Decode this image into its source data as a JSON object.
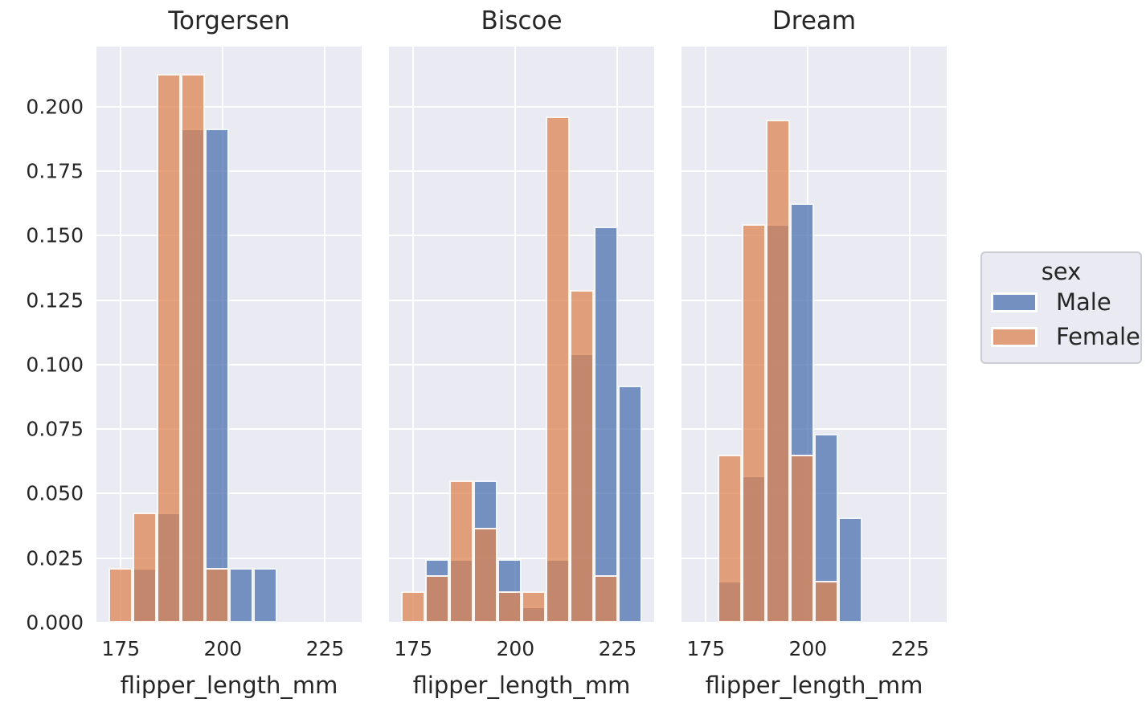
{
  "style": {
    "figure_bg": "#ffffff",
    "axes_bg": "#eaeaf2",
    "grid_color": "#ffffff",
    "text_color": "#262626",
    "bar_alpha": 0.75,
    "bar_edge_color": "#ffffff",
    "series_colors": {
      "Male": "#4c72b0",
      "Female": "#dd8452"
    }
  },
  "legend": {
    "title": "sex",
    "items": [
      {
        "label": "Male",
        "color": "#4c72b0"
      },
      {
        "label": "Female",
        "color": "#dd8452"
      }
    ]
  },
  "chart_data": {
    "type": "bar",
    "subtype": "faceted-overlapping-histogram",
    "stat": "probability",
    "x_label": "flipper_length_mm",
    "x_ticks": [
      175,
      200,
      225
    ],
    "y_ticks": [
      0.0,
      0.025,
      0.05,
      0.075,
      0.1,
      0.125,
      0.15,
      0.175,
      0.2
    ],
    "xlim": [
      169.05,
      233.95
    ],
    "ylim": [
      0,
      0.2233
    ],
    "grid": true,
    "legend_position": "right-outside",
    "bin_edges": [
      172.0,
      177.9,
      183.8,
      189.7,
      195.6,
      201.5,
      207.4,
      213.3,
      219.2,
      225.1,
      231.0
    ],
    "facets": [
      {
        "title": "Torgersen",
        "series": [
          {
            "name": "Male",
            "values": [
              0,
              0.0213,
              0.0426,
              0.1915,
              0.1915,
              0.0213,
              0.0213,
              0,
              0,
              0
            ]
          },
          {
            "name": "Female",
            "values": [
              0.0213,
              0.0426,
              0.2128,
              0.2128,
              0.0213,
              0,
              0,
              0,
              0,
              0
            ]
          }
        ]
      },
      {
        "title": "Biscoe",
        "series": [
          {
            "name": "Male",
            "values": [
              0,
              0.0245,
              0.0245,
              0.0552,
              0.0245,
              0.0061,
              0.0245,
              0.1043,
              0.1534,
              0.092
            ]
          },
          {
            "name": "Female",
            "values": [
              0.0123,
              0.0184,
              0.0552,
              0.0368,
              0.0123,
              0.0123,
              0.1963,
              0.1288,
              0.0184,
              0
            ]
          }
        ]
      },
      {
        "title": "Dream",
        "series": [
          {
            "name": "Male",
            "values": [
              0,
              0.0163,
              0.0569,
              0.1545,
              0.1626,
              0.0732,
              0.0407,
              0,
              0,
              0
            ]
          },
          {
            "name": "Female",
            "values": [
              0,
              0.065,
              0.1545,
              0.1951,
              0.065,
              0.0163,
              0,
              0,
              0,
              0
            ]
          }
        ]
      }
    ]
  }
}
